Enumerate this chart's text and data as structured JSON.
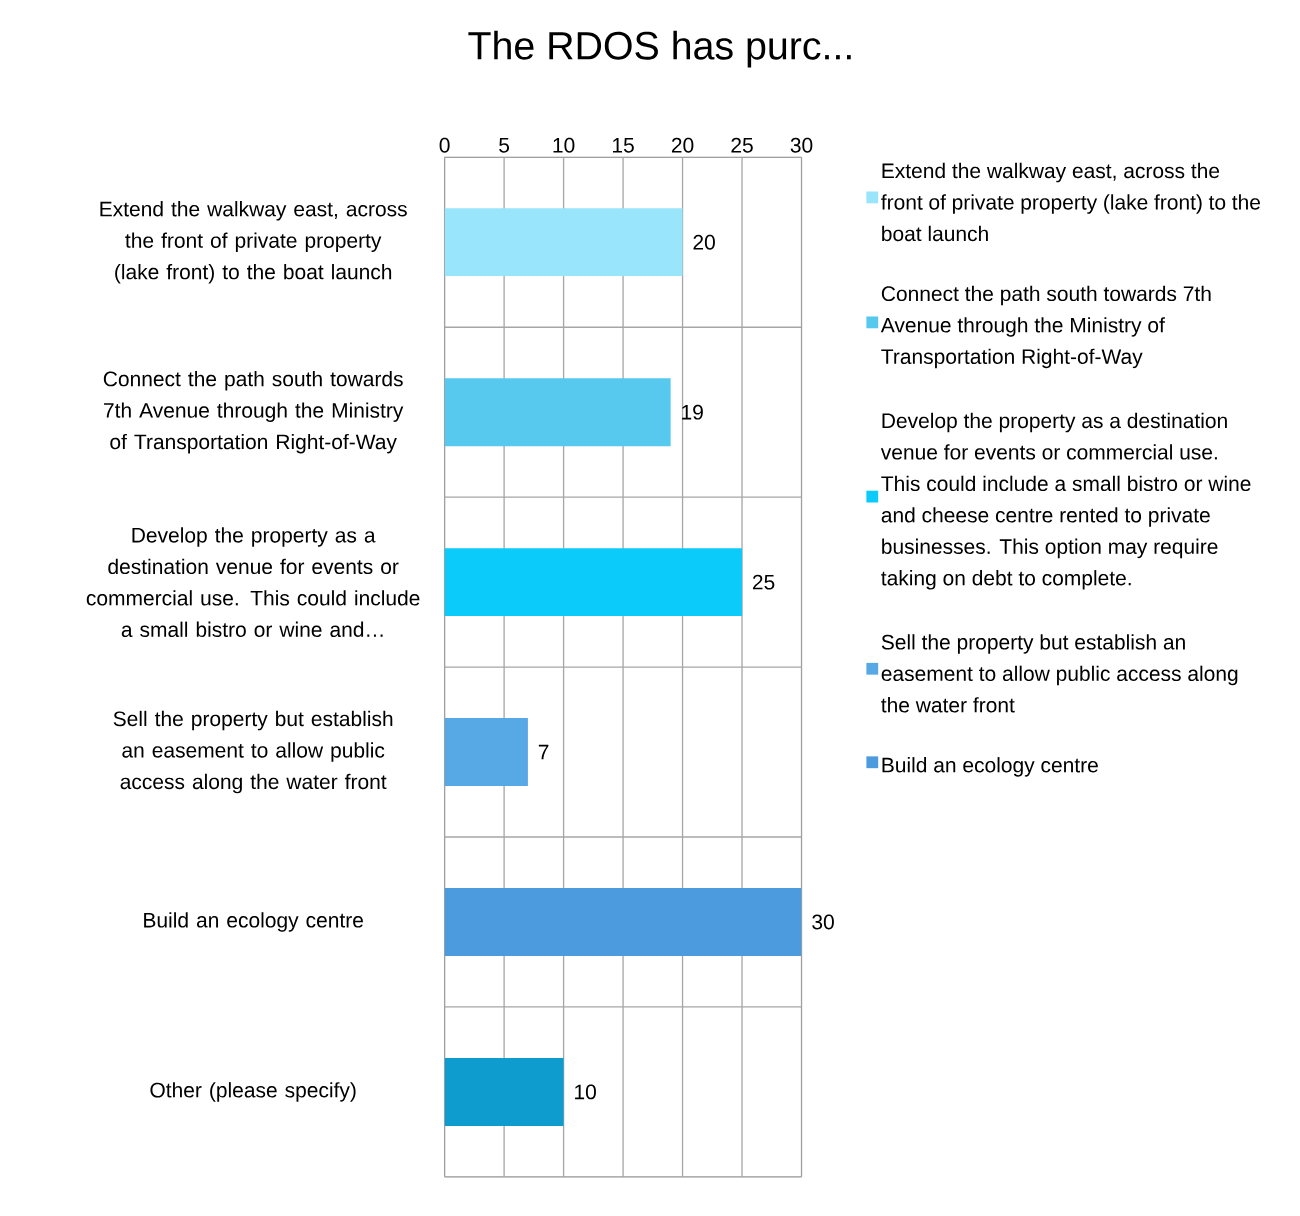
{
  "chart_data": {
    "type": "bar",
    "orientation": "horizontal",
    "title": "The RDOS has purc...",
    "categories": [
      "Extend the walkway east, across the front of private property (lake front) to the boat launch",
      "Connect the path south towards 7th Avenue through the Ministry of Transportation Right-of-Way",
      "Develop the property as a destination venue for events or commercial use. This could include a small bistro or wine and…",
      "Sell the property but establish an easement to allow public access along the water front",
      "Build an ecology centre",
      "Other (please specify)"
    ],
    "series": [
      {
        "name": "Extend the walkway east, across the front of private property (lake front) to the boat launch",
        "color": "#99e5fb",
        "values": [
          20,
          null,
          null,
          null,
          null,
          null
        ]
      },
      {
        "name": "Connect the path south towards 7th Avenue through the Ministry of Transportation Right-of-Way",
        "color": "#57c8ee",
        "values": [
          null,
          19,
          null,
          null,
          null,
          null
        ]
      },
      {
        "name": "Develop the property as a destination venue for events or commercial use. This could include a small bistro or wine and cheese centre rented to private businesses. This option may require taking on debt to complete.",
        "color": "#0bcbfb",
        "values": [
          null,
          null,
          25,
          null,
          null,
          null
        ]
      },
      {
        "name": "Sell the property but establish an easement to allow public access along the water front",
        "color": "#57a9e6",
        "values": [
          null,
          null,
          null,
          7,
          null,
          null
        ]
      },
      {
        "name": "Build an ecology centre",
        "color": "#4d9bdf",
        "values": [
          null,
          null,
          null,
          null,
          30,
          null
        ]
      },
      {
        "color": "#0e9ccf",
        "values": [
          null,
          null,
          null,
          null,
          null,
          10
        ]
      }
    ],
    "xlim": [
      0,
      30
    ],
    "xticks": [
      0,
      5,
      10,
      15,
      20,
      25,
      30
    ],
    "data_labels": true,
    "grid": true,
    "legend": "right"
  }
}
